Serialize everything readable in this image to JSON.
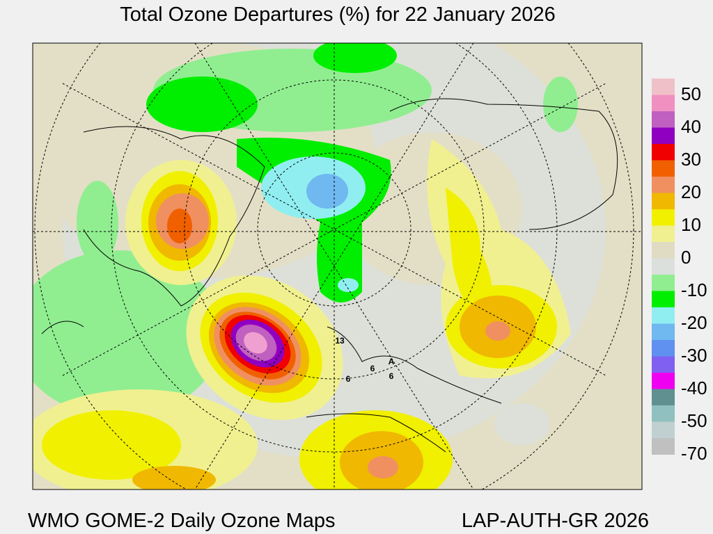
{
  "title": "Total Ozone Departures (%) for 22 January 2026",
  "footer_left": "WMO GOME-2 Daily Ozone Maps",
  "footer_right": "LAP-AUTH-GR 2026",
  "colorbar": {
    "labels": [
      50,
      40,
      30,
      20,
      10,
      0,
      -10,
      -20,
      -30,
      -40,
      -50,
      -70
    ],
    "colors": [
      "#f0c0c8",
      "#f090c0",
      "#c060c0",
      "#9000c0",
      "#f00000",
      "#f06000",
      "#f09060",
      "#f0b800",
      "#f0f000",
      "#f0f090",
      "#e0dcc4",
      "#dce0dc",
      "#90ee90",
      "#00ee00",
      "#90eef0",
      "#70b8f0",
      "#6090f0",
      "#8060f0",
      "#f000f0",
      "#609090",
      "#90c0c0",
      "#c0d0d0",
      "#c0c0c0"
    ]
  },
  "station_labels": [
    "13",
    "6",
    "6",
    "6",
    "A"
  ]
}
